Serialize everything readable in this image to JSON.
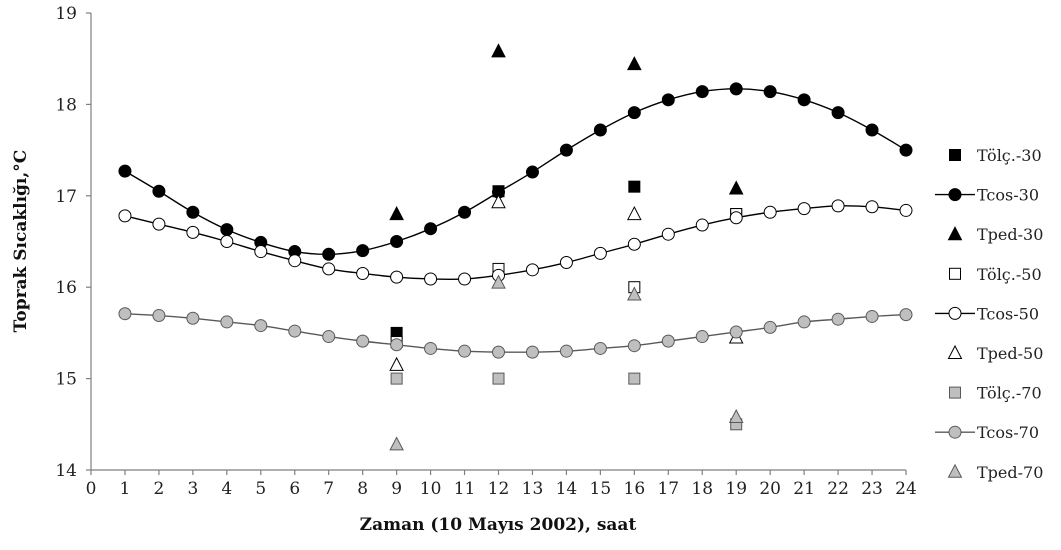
{
  "chart_data": {
    "type": "scatter",
    "title": "",
    "xlabel": "Zaman (10 Mayıs 2002), saat",
    "ylabel": "Toprak Sıcaklığı,°C",
    "xlim": [
      0,
      24
    ],
    "ylim": [
      14,
      19
    ],
    "x_ticks": [
      0,
      1,
      2,
      3,
      4,
      5,
      6,
      7,
      8,
      9,
      10,
      11,
      12,
      13,
      14,
      15,
      16,
      17,
      18,
      19,
      20,
      21,
      22,
      23,
      24
    ],
    "y_ticks": [
      14,
      15,
      16,
      17,
      18,
      19
    ],
    "grid": false,
    "legend_position": "right",
    "series": [
      {
        "name": "Tölç.-30",
        "kind": "points",
        "marker": "square",
        "fill": "#000000",
        "stroke": "#000000",
        "x": [
          9,
          12,
          16,
          19
        ],
        "y": [
          15.5,
          17.05,
          17.1,
          16.8
        ]
      },
      {
        "name": "Tcos-30",
        "kind": "line",
        "marker": "circle",
        "fill": "#000000",
        "stroke": "#000000",
        "x": [
          1,
          2,
          3,
          4,
          5,
          6,
          7,
          8,
          9,
          10,
          11,
          12,
          13,
          14,
          15,
          16,
          17,
          18,
          19,
          20,
          21,
          22,
          23,
          24
        ],
        "y": [
          17.27,
          17.05,
          16.82,
          16.63,
          16.49,
          16.39,
          16.36,
          16.4,
          16.5,
          16.64,
          16.82,
          17.04,
          17.26,
          17.5,
          17.72,
          17.91,
          18.05,
          18.14,
          18.17,
          18.14,
          18.05,
          17.91,
          17.72,
          17.5
        ]
      },
      {
        "name": "Tped-30",
        "kind": "points",
        "marker": "triangle",
        "fill": "#000000",
        "stroke": "#000000",
        "x": [
          9,
          12,
          16,
          19
        ],
        "y": [
          16.8,
          18.58,
          18.44,
          17.08
        ]
      },
      {
        "name": "Tölç.-50",
        "kind": "points",
        "marker": "square",
        "fill": "#ffffff",
        "stroke": "#000000",
        "x": [
          9,
          12,
          16,
          19
        ],
        "y": [
          15.4,
          16.2,
          16.0,
          16.8
        ]
      },
      {
        "name": "Tcos-50",
        "kind": "line",
        "marker": "circle",
        "fill": "#ffffff",
        "stroke": "#000000",
        "x": [
          1,
          2,
          3,
          4,
          5,
          6,
          7,
          8,
          9,
          10,
          11,
          12,
          13,
          14,
          15,
          16,
          17,
          18,
          19,
          20,
          21,
          22,
          23,
          24
        ],
        "y": [
          16.78,
          16.69,
          16.6,
          16.5,
          16.39,
          16.29,
          16.2,
          16.15,
          16.11,
          16.09,
          16.09,
          16.13,
          16.19,
          16.27,
          16.37,
          16.47,
          16.58,
          16.68,
          16.76,
          16.82,
          16.86,
          16.89,
          16.88,
          16.84
        ]
      },
      {
        "name": "Tped-50",
        "kind": "points",
        "marker": "triangle",
        "fill": "#ffffff",
        "stroke": "#000000",
        "x": [
          9,
          12,
          16,
          19
        ],
        "y": [
          15.15,
          16.93,
          16.8,
          15.45
        ]
      },
      {
        "name": "Tölç.-70",
        "kind": "points",
        "marker": "square",
        "fill": "#bfbfbf",
        "stroke": "#595959",
        "x": [
          9,
          12,
          16,
          19
        ],
        "y": [
          15.0,
          15.0,
          15.0,
          14.5
        ]
      },
      {
        "name": "Tcos-70",
        "kind": "line",
        "marker": "circle",
        "fill": "#bfbfbf",
        "stroke": "#595959",
        "x": [
          1,
          2,
          3,
          4,
          5,
          6,
          7,
          8,
          9,
          10,
          11,
          12,
          13,
          14,
          15,
          16,
          17,
          18,
          19,
          20,
          21,
          22,
          23,
          24
        ],
        "y": [
          15.71,
          15.69,
          15.66,
          15.62,
          15.58,
          15.52,
          15.46,
          15.41,
          15.37,
          15.33,
          15.3,
          15.29,
          15.29,
          15.3,
          15.33,
          15.36,
          15.41,
          15.46,
          15.51,
          15.56,
          15.62,
          15.65,
          15.68,
          15.7
        ]
      },
      {
        "name": "Tped-70",
        "kind": "points",
        "marker": "triangle",
        "fill": "#bfbfbf",
        "stroke": "#595959",
        "x": [
          9,
          12,
          16,
          19
        ],
        "y": [
          14.28,
          16.05,
          15.92,
          14.58
        ]
      }
    ]
  }
}
